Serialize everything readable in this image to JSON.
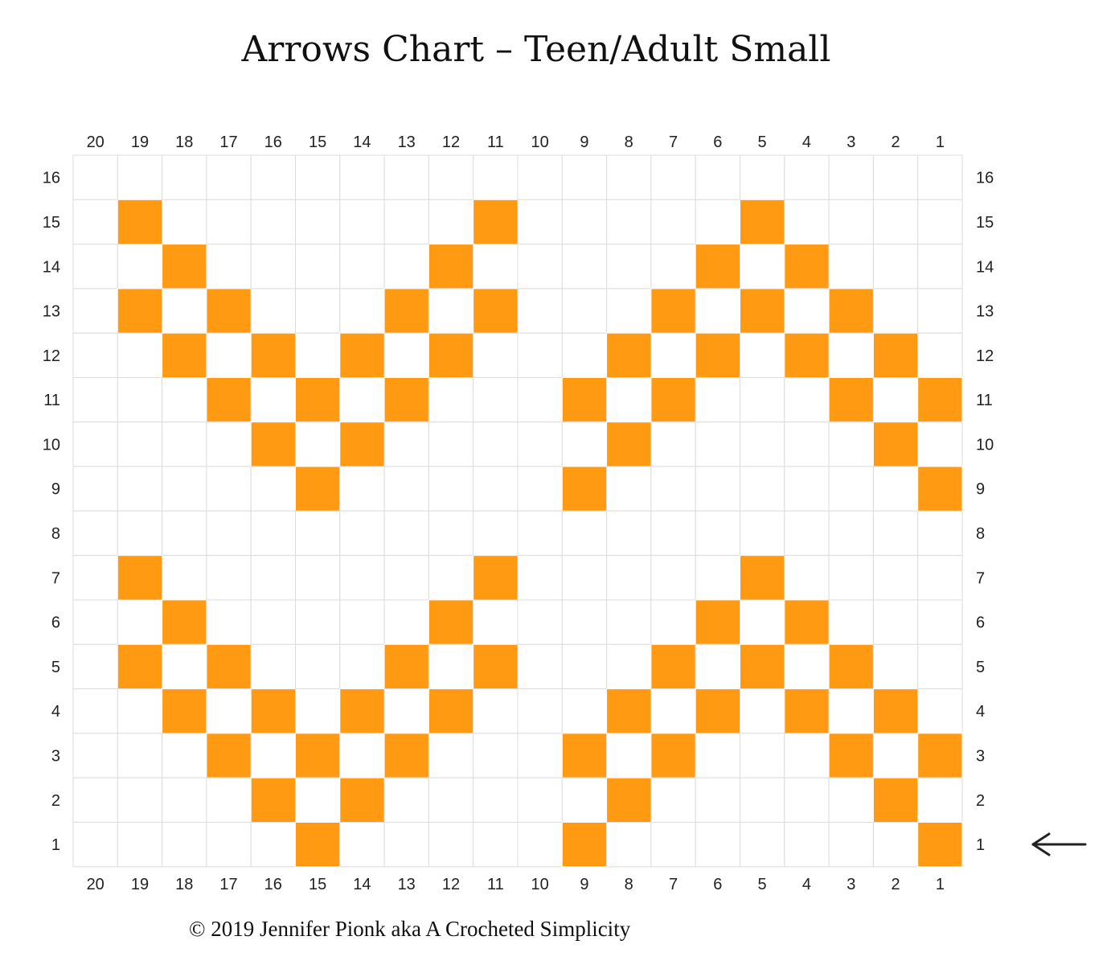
{
  "title": "Arrows Chart – Teen/Adult Small",
  "copyright": "© 2019 Jennifer Pionk aka A Crocheted Simplicity",
  "colors": {
    "filled": "#ff9a12",
    "empty": "#ffffff",
    "gridline": "#dcdcdc"
  },
  "grid": {
    "columns": [
      20,
      19,
      18,
      17,
      16,
      15,
      14,
      13,
      12,
      11,
      10,
      9,
      8,
      7,
      6,
      5,
      4,
      3,
      2,
      1
    ],
    "rows": [
      16,
      15,
      14,
      13,
      12,
      11,
      10,
      9,
      8,
      7,
      6,
      5,
      4,
      3,
      2,
      1
    ],
    "filled": {
      "15": [
        19,
        11,
        5
      ],
      "14": [
        18,
        12,
        6,
        4
      ],
      "13": [
        19,
        17,
        13,
        11,
        7,
        5,
        3
      ],
      "12": [
        18,
        16,
        14,
        12,
        8,
        6,
        4,
        2
      ],
      "11": [
        17,
        15,
        13,
        9,
        7,
        3,
        1
      ],
      "10": [
        16,
        14,
        8,
        2
      ],
      "9": [
        15,
        9,
        1
      ],
      "7": [
        19,
        11,
        5
      ],
      "6": [
        18,
        12,
        6,
        4
      ],
      "5": [
        19,
        17,
        13,
        11,
        7,
        5,
        3
      ],
      "4": [
        18,
        16,
        14,
        12,
        8,
        6,
        4,
        2
      ],
      "3": [
        17,
        15,
        13,
        9,
        7,
        3,
        1
      ],
      "2": [
        16,
        14,
        8,
        2
      ],
      "1": [
        15,
        9,
        1
      ]
    }
  },
  "start_marker": {
    "row": 1,
    "icon": "arrow-left-icon"
  }
}
